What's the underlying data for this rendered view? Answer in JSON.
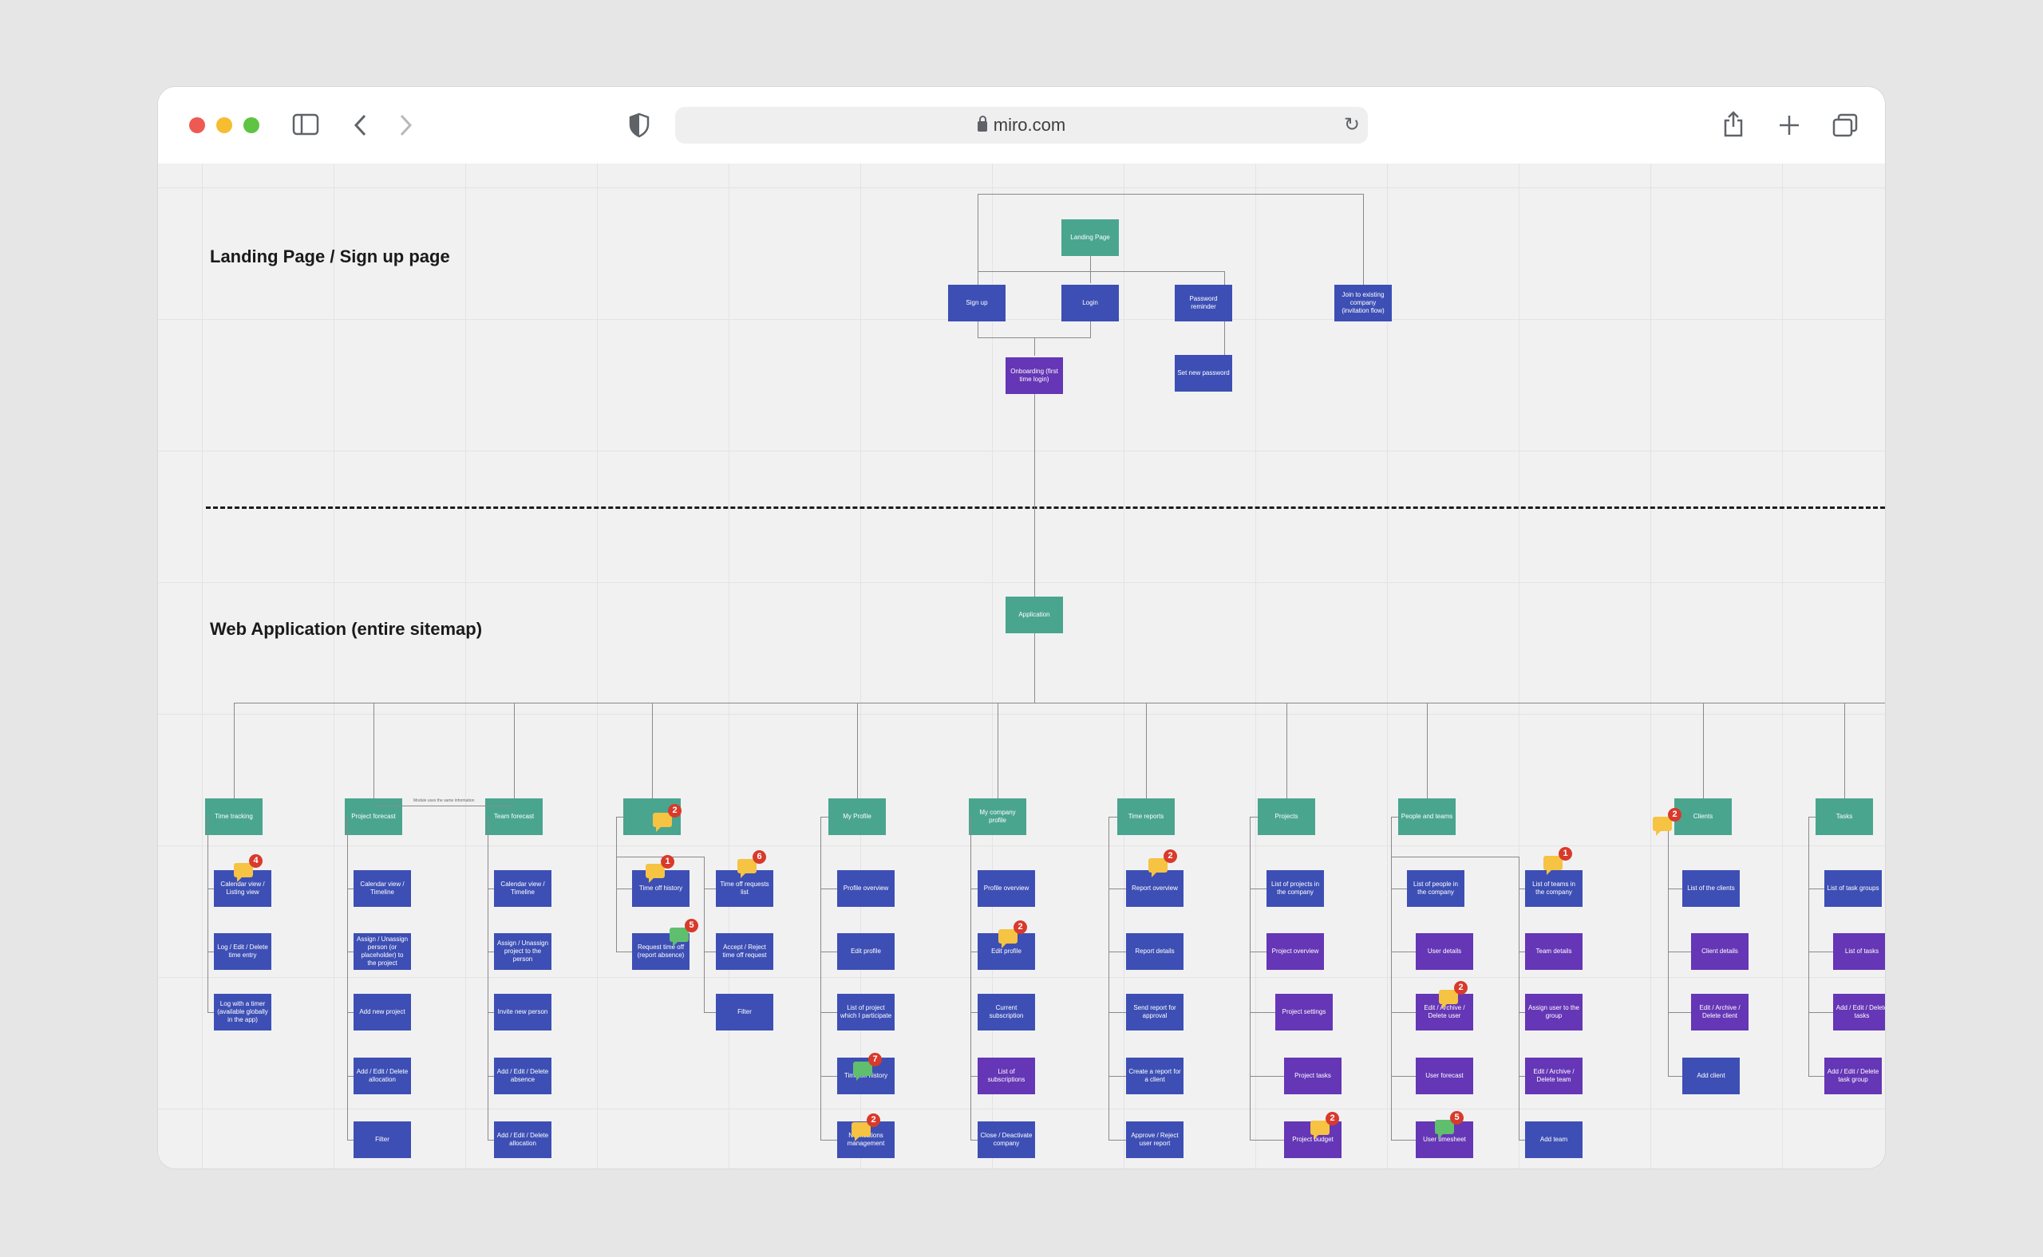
{
  "browser": {
    "url": "miro.com",
    "icons": [
      "sidebar-icon",
      "back-icon",
      "forward-icon",
      "shield-icon",
      "lock-icon",
      "reload-icon",
      "share-icon",
      "new-tab-icon",
      "tabs-overview-icon"
    ]
  },
  "board": {
    "section_landing": "Landing Page / Sign up page",
    "section_web": "Web Application (entire sitemap)",
    "landing": {
      "root": "Landing Page",
      "signup": "Sign up",
      "login": "Login",
      "password_reminder": "Password reminder",
      "join_company": "Join to existing company (invitation flow)",
      "onboarding": "Onboarding (first time login)",
      "set_password": "Set new password"
    },
    "application": "Application",
    "columns": [
      {
        "head": "Time tracking",
        "items": [
          "Calendar view / Listing view",
          "Log / Edit / Delete time entry",
          "Log with a timer (available globally in the app)"
        ]
      },
      {
        "head": "Project forecast",
        "items": [
          "Calendar view / Timeline",
          "Assign / Unassign person (or placeholder) to the project",
          "Add new project",
          "Add / Edit / Delete allocation",
          "Filter"
        ]
      },
      {
        "head": "Team forecast",
        "items": [
          "Calendar view / Timeline",
          "Assign / Unassign project to the person",
          "Invite new person",
          "Add / Edit / Delete absence",
          "Add / Edit / Delete allocation"
        ]
      },
      {
        "head": "",
        "items": [
          "Time off history",
          "Request time off (report absence)"
        ]
      },
      {
        "head": "",
        "items": [
          "Time off requests list",
          "Accept / Reject time off request",
          "Filter"
        ]
      },
      {
        "head": "My Profile",
        "items": [
          "Profile overview",
          "Edit profile",
          "List of project which I participate",
          "Time off history",
          "Notifications management"
        ]
      },
      {
        "head": "My company profile",
        "items": [
          "Profile overview",
          "Edit profile",
          "Current subscription",
          "List of subscriptions",
          "Close / Deactivate company"
        ]
      },
      {
        "head": "Time reports",
        "items": [
          "Report overview",
          "Report details",
          "Send report for approval",
          "Create a report for a client",
          "Approve / Reject user report"
        ]
      },
      {
        "head": "Projects",
        "items": [
          "List of projects in the company",
          "Project overview",
          "Project settings",
          "Project tasks",
          "Project budget"
        ]
      },
      {
        "head": "People and teams",
        "items": [
          "List of people in the company",
          "User details",
          "Edit / Archive / Delete user",
          "User forecast",
          "User timesheet"
        ]
      },
      {
        "head": "",
        "items": [
          "List of teams in the company",
          "Team details",
          "Assign user to the group",
          "Edit / Archive / Delete team",
          "Add team"
        ]
      },
      {
        "head": "Clients",
        "items": [
          "List of the clients",
          "Client details",
          "Edit / Archive / Delete client",
          "Add client"
        ]
      },
      {
        "head": "Tasks",
        "items": [
          "List of task groups",
          "List of tasks",
          "Add / Edit / Delete tasks",
          "Add / Edit / Delete task group"
        ]
      }
    ],
    "edge_note": "Module uses the same information",
    "comment_counts": [
      "2",
      "4",
      "1",
      "6",
      "5",
      "7",
      "2",
      "2",
      "2",
      "1",
      "2",
      "2",
      "5",
      "2"
    ],
    "colors": {
      "green": "#4aa58f",
      "blue": "#3d4fb4",
      "purple": "#6536b5",
      "comment": "#f6c343",
      "badge": "#d83a2b"
    }
  }
}
